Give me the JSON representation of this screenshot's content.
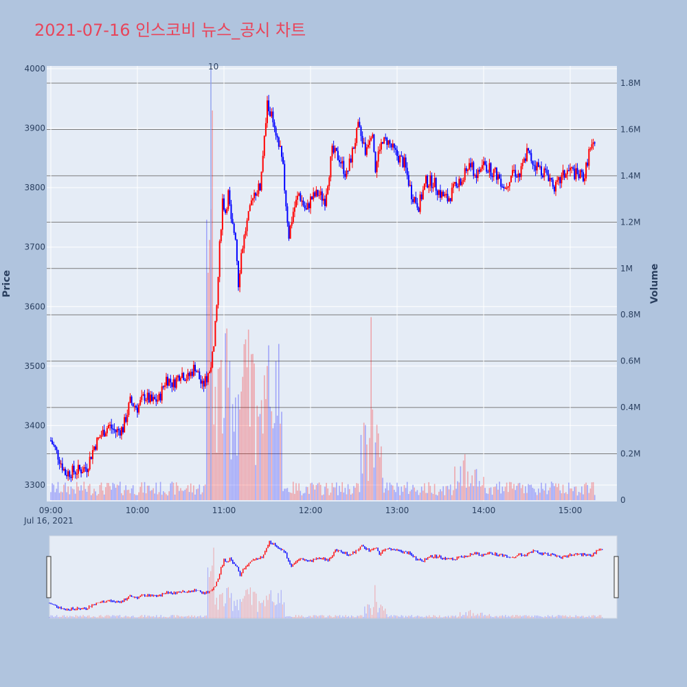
{
  "title": "2021-07-16 인스코비 뉴스_공시 차트",
  "chart_data": {
    "type": "candlestick",
    "date_label": "Jul 16, 2021",
    "ylabel": "Price",
    "y2label": "Volume",
    "ylim": [
      3270,
      4000
    ],
    "y2lim": [
      0,
      1870000
    ],
    "price_ticks": [
      3300,
      3400,
      3500,
      3600,
      3700,
      3800,
      3900,
      4000
    ],
    "volume_ticks": [
      {
        "v": 0,
        "label": "0"
      },
      {
        "v": 200000,
        "label": "0.2M"
      },
      {
        "v": 400000,
        "label": "0.4M"
      },
      {
        "v": 600000,
        "label": "0.6M"
      },
      {
        "v": 800000,
        "label": "0.8M"
      },
      {
        "v": 1000000,
        "label": "1M"
      },
      {
        "v": 1200000,
        "label": "1.2M"
      },
      {
        "v": 1400000,
        "label": "1.4M"
      },
      {
        "v": 1600000,
        "label": "1.6M"
      },
      {
        "v": 1800000,
        "label": "1.8M"
      }
    ],
    "time_ticks": [
      "09:00",
      "10:00",
      "11:00",
      "12:00",
      "13:00",
      "14:00",
      "15:00"
    ],
    "annotation": "10",
    "up_color": "#ff0000",
    "down_color": "#0000ff",
    "price_path": [
      [
        "09:00",
        3375
      ],
      [
        "09:05",
        3350
      ],
      [
        "09:10",
        3320
      ],
      [
        "09:20",
        3325
      ],
      [
        "09:25",
        3330
      ],
      [
        "09:30",
        3365
      ],
      [
        "09:35",
        3385
      ],
      [
        "09:40",
        3400
      ],
      [
        "09:45",
        3390
      ],
      [
        "09:50",
        3395
      ],
      [
        "09:55",
        3440
      ],
      [
        "10:00",
        3430
      ],
      [
        "10:05",
        3450
      ],
      [
        "10:10",
        3440
      ],
      [
        "10:15",
        3445
      ],
      [
        "10:20",
        3480
      ],
      [
        "10:25",
        3470
      ],
      [
        "10:30",
        3490
      ],
      [
        "10:35",
        3480
      ],
      [
        "10:40",
        3500
      ],
      [
        "10:45",
        3465
      ],
      [
        "10:50",
        3490
      ],
      [
        "10:53",
        3530
      ],
      [
        "10:55",
        3600
      ],
      [
        "10:57",
        3700
      ],
      [
        "10:59",
        3780
      ],
      [
        "11:01",
        3760
      ],
      [
        "11:03",
        3790
      ],
      [
        "11:05",
        3740
      ],
      [
        "11:08",
        3720
      ],
      [
        "11:10",
        3640
      ],
      [
        "11:12",
        3690
      ],
      [
        "11:15",
        3730
      ],
      [
        "11:18",
        3760
      ],
      [
        "11:20",
        3790
      ],
      [
        "11:25",
        3800
      ],
      [
        "11:27",
        3850
      ],
      [
        "11:30",
        3940
      ],
      [
        "11:33",
        3920
      ],
      [
        "11:36",
        3880
      ],
      [
        "11:40",
        3860
      ],
      [
        "11:42",
        3800
      ],
      [
        "11:45",
        3720
      ],
      [
        "11:48",
        3760
      ],
      [
        "11:52",
        3790
      ],
      [
        "11:57",
        3760
      ],
      [
        "12:00",
        3780
      ],
      [
        "12:05",
        3790
      ],
      [
        "12:10",
        3780
      ],
      [
        "12:15",
        3860
      ],
      [
        "12:20",
        3850
      ],
      [
        "12:25",
        3820
      ],
      [
        "12:30",
        3870
      ],
      [
        "12:33",
        3900
      ],
      [
        "12:36",
        3880
      ],
      [
        "12:38",
        3860
      ],
      [
        "12:40",
        3880
      ],
      [
        "12:43",
        3900
      ],
      [
        "12:45",
        3830
      ],
      [
        "12:48",
        3870
      ],
      [
        "12:53",
        3880
      ],
      [
        "12:58",
        3860
      ],
      [
        "13:05",
        3840
      ],
      [
        "13:10",
        3790
      ],
      [
        "13:15",
        3770
      ],
      [
        "13:20",
        3810
      ],
      [
        "13:25",
        3810
      ],
      [
        "13:30",
        3790
      ],
      [
        "13:35",
        3780
      ],
      [
        "13:40",
        3800
      ],
      [
        "13:45",
        3810
      ],
      [
        "13:50",
        3840
      ],
      [
        "13:55",
        3820
      ],
      [
        "14:00",
        3840
      ],
      [
        "14:05",
        3830
      ],
      [
        "14:10",
        3820
      ],
      [
        "14:15",
        3800
      ],
      [
        "14:20",
        3830
      ],
      [
        "14:25",
        3820
      ],
      [
        "14:30",
        3860
      ],
      [
        "14:35",
        3840
      ],
      [
        "14:40",
        3830
      ],
      [
        "14:45",
        3820
      ],
      [
        "14:50",
        3800
      ],
      [
        "14:55",
        3820
      ],
      [
        "15:00",
        3830
      ],
      [
        "15:05",
        3820
      ],
      [
        "15:10",
        3820
      ],
      [
        "15:13",
        3860
      ],
      [
        "15:17",
        3870
      ]
    ]
  }
}
